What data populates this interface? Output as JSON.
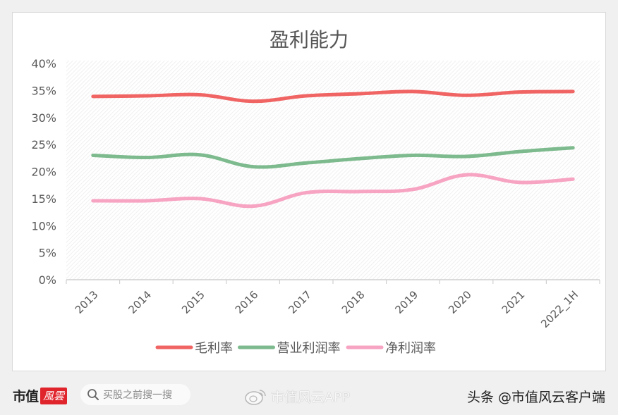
{
  "chart_data": {
    "type": "line",
    "title": "盈利能力",
    "xlabel": "",
    "ylabel": "",
    "categories": [
      "2013",
      "2014",
      "2015",
      "2016",
      "2017",
      "2018",
      "2019",
      "2020",
      "2021",
      "2022_1H"
    ],
    "y_ticks": [
      "0%",
      "5%",
      "10%",
      "15%",
      "20%",
      "25%",
      "30%",
      "35%",
      "40%"
    ],
    "ylim": [
      0,
      40
    ],
    "grid": false,
    "background_pattern": "diagonal-hatch",
    "smooth": true,
    "legend_position": "bottom",
    "series": [
      {
        "name": "毛利率",
        "color": "#f06464",
        "values": [
          33.9,
          34.0,
          34.2,
          33.0,
          34.0,
          34.4,
          34.8,
          34.1,
          34.7,
          34.8
        ]
      },
      {
        "name": "营业利润率",
        "color": "#7dba8d",
        "values": [
          23.0,
          22.6,
          23.1,
          20.9,
          21.6,
          22.4,
          23.0,
          22.8,
          23.7,
          24.4
        ]
      },
      {
        "name": "净利润率",
        "color": "#f7a3c2",
        "values": [
          14.6,
          14.6,
          15.0,
          13.6,
          16.1,
          16.3,
          16.7,
          19.4,
          18.0,
          18.6
        ]
      }
    ]
  },
  "watermark": "市值风云",
  "footer": {
    "brand_text": "市值",
    "brand_logo": "風雲",
    "search_placeholder": "买股之前搜一搜",
    "weibo_label": "市值风云APP",
    "toutiao_label": "头条 @市值风云客户端"
  }
}
